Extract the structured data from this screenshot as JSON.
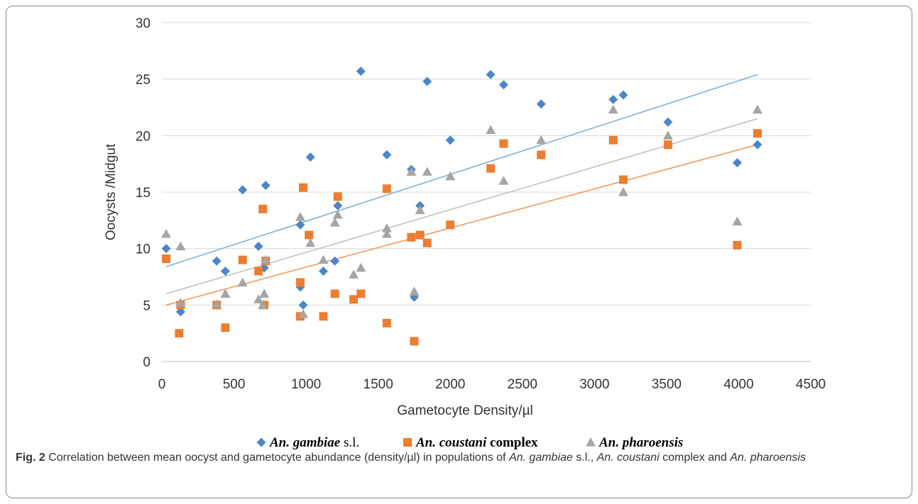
{
  "chart_data": {
    "type": "scatter",
    "xlabel": "Gametocyte Density/µl",
    "ylabel": "Oocysts  /Midgut",
    "xlim": [
      0,
      4500
    ],
    "ylim": [
      0,
      30
    ],
    "xticks": [
      "0",
      "500",
      "1000",
      "1500",
      "2000",
      "2500",
      "3000",
      "3500",
      "4000",
      "4500"
    ],
    "yticks": [
      "0",
      "5",
      "10",
      "15",
      "20",
      "25",
      "30"
    ],
    "grid": "horizontal",
    "legend_position": "bottom",
    "series": [
      {
        "name": "An. gambiae s.l.",
        "legend_italic": "An. gambiae",
        "legend_rest": " s.l.",
        "marker": "diamond",
        "color": "#4a86c8",
        "trend_color": "#7fb0dd",
        "trend": [
          [
            30,
            8.4
          ],
          [
            4130,
            25.4
          ]
        ],
        "points": [
          [
            30,
            10.0
          ],
          [
            130,
            4.4
          ],
          [
            380,
            8.9
          ],
          [
            440,
            8.0
          ],
          [
            560,
            15.2
          ],
          [
            670,
            10.2
          ],
          [
            710,
            8.3
          ],
          [
            720,
            15.6
          ],
          [
            960,
            6.6
          ],
          [
            960,
            12.1
          ],
          [
            980,
            5.0
          ],
          [
            1030,
            18.1
          ],
          [
            1120,
            8.0
          ],
          [
            1200,
            8.9
          ],
          [
            1220,
            13.8
          ],
          [
            1380,
            25.7
          ],
          [
            1560,
            18.3
          ],
          [
            1730,
            17.0
          ],
          [
            1750,
            5.7
          ],
          [
            1790,
            13.8
          ],
          [
            1840,
            24.8
          ],
          [
            2000,
            19.6
          ],
          [
            2280,
            25.4
          ],
          [
            2370,
            24.5
          ],
          [
            2630,
            22.8
          ],
          [
            3130,
            23.2
          ],
          [
            3200,
            23.6
          ],
          [
            3510,
            21.2
          ],
          [
            3990,
            17.6
          ],
          [
            4130,
            19.2
          ]
        ]
      },
      {
        "name": "An. coustani complex",
        "legend_italic": "An. coustani",
        "legend_rest": " complex",
        "marker": "square",
        "color": "#ec7d31",
        "trend_color": "#f09a5c",
        "trend": [
          [
            30,
            5.0
          ],
          [
            4130,
            19.2
          ]
        ],
        "points": [
          [
            30,
            9.1
          ],
          [
            120,
            2.5
          ],
          [
            130,
            5.0
          ],
          [
            380,
            5.0
          ],
          [
            440,
            3.0
          ],
          [
            560,
            9.0
          ],
          [
            670,
            8.0
          ],
          [
            700,
            13.5
          ],
          [
            710,
            5.0
          ],
          [
            720,
            8.9
          ],
          [
            960,
            7.0
          ],
          [
            960,
            4.0
          ],
          [
            980,
            15.4
          ],
          [
            1020,
            11.2
          ],
          [
            1120,
            4.0
          ],
          [
            1200,
            6.0
          ],
          [
            1220,
            14.6
          ],
          [
            1330,
            5.5
          ],
          [
            1380,
            6.0
          ],
          [
            1560,
            3.4
          ],
          [
            1560,
            15.3
          ],
          [
            1730,
            11.0
          ],
          [
            1750,
            1.8
          ],
          [
            1790,
            11.2
          ],
          [
            1840,
            10.5
          ],
          [
            2000,
            12.1
          ],
          [
            2280,
            17.1
          ],
          [
            2370,
            19.3
          ],
          [
            2630,
            18.3
          ],
          [
            3130,
            19.6
          ],
          [
            3200,
            16.1
          ],
          [
            3510,
            19.2
          ],
          [
            3990,
            10.3
          ],
          [
            4130,
            20.2
          ]
        ]
      },
      {
        "name": "An. pharoensis",
        "legend_italic": "An. pharoensis",
        "legend_rest": "",
        "marker": "triangle",
        "color": "#a5a5a5",
        "trend_color": "#c2c2c2",
        "trend": [
          [
            30,
            6.0
          ],
          [
            4130,
            21.5
          ]
        ],
        "points": [
          [
            30,
            11.3
          ],
          [
            130,
            10.2
          ],
          [
            130,
            5.2
          ],
          [
            380,
            5.1
          ],
          [
            440,
            6.0
          ],
          [
            560,
            7.0
          ],
          [
            670,
            5.5
          ],
          [
            700,
            5.0
          ],
          [
            710,
            6.0
          ],
          [
            720,
            9.0
          ],
          [
            960,
            12.8
          ],
          [
            980,
            4.2
          ],
          [
            1030,
            10.5
          ],
          [
            1120,
            9.0
          ],
          [
            1200,
            12.3
          ],
          [
            1220,
            13.0
          ],
          [
            1330,
            7.7
          ],
          [
            1380,
            8.3
          ],
          [
            1560,
            11.8
          ],
          [
            1560,
            11.3
          ],
          [
            1730,
            16.8
          ],
          [
            1750,
            6.2
          ],
          [
            1790,
            13.4
          ],
          [
            1840,
            16.8
          ],
          [
            2000,
            16.4
          ],
          [
            2280,
            20.5
          ],
          [
            2370,
            16.0
          ],
          [
            2630,
            19.6
          ],
          [
            3130,
            22.3
          ],
          [
            3200,
            15.0
          ],
          [
            3510,
            20.0
          ],
          [
            3990,
            12.4
          ],
          [
            4130,
            22.3
          ]
        ]
      }
    ]
  },
  "caption": {
    "label": "Fig. 2",
    "text_1": "  Correlation between mean oocyst and gametocyte abundance (density/µl) in populations of ",
    "italic_1": "An. gambiae",
    "text_2": " s.l., ",
    "italic_2": "An. coustani",
    "text_3": " complex and ",
    "italic_3": "An. pharoensis",
    "text_4": ""
  }
}
